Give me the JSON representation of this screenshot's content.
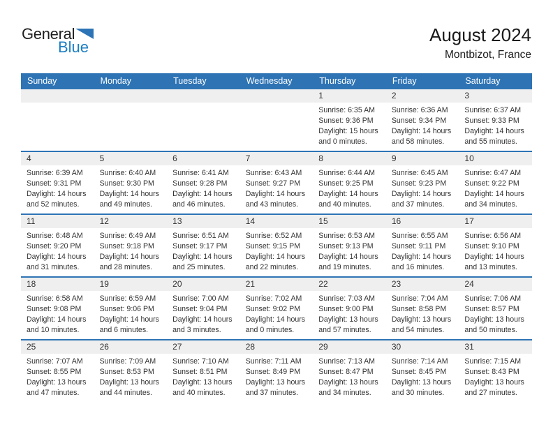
{
  "logo": {
    "part1": "General",
    "part2": "Blue"
  },
  "header": {
    "title": "August 2024",
    "subtitle": "Montbizot, France"
  },
  "colors": {
    "accent": "#2E74B5",
    "strip_gray": "#EFEFEF",
    "logo_blue": "#1B7EC2",
    "triangle_blue": "#2D74B6",
    "text_dark": "#333333"
  },
  "calendar": {
    "day_headers": [
      "Sunday",
      "Monday",
      "Tuesday",
      "Wednesday",
      "Thursday",
      "Friday",
      "Saturday"
    ],
    "labels": {
      "sunrise": "Sunrise:",
      "sunset": "Sunset:",
      "daylight": "Daylight:",
      "hours_word": "hours",
      "and_word": "and",
      "minutes_word": "minutes."
    },
    "weeks": [
      [
        null,
        null,
        null,
        null,
        {
          "day": "1",
          "sunrise": "6:35 AM",
          "sunset": "9:36 PM",
          "hours": "15",
          "minutes": "0"
        },
        {
          "day": "2",
          "sunrise": "6:36 AM",
          "sunset": "9:34 PM",
          "hours": "14",
          "minutes": "58"
        },
        {
          "day": "3",
          "sunrise": "6:37 AM",
          "sunset": "9:33 PM",
          "hours": "14",
          "minutes": "55"
        }
      ],
      [
        {
          "day": "4",
          "sunrise": "6:39 AM",
          "sunset": "9:31 PM",
          "hours": "14",
          "minutes": "52"
        },
        {
          "day": "5",
          "sunrise": "6:40 AM",
          "sunset": "9:30 PM",
          "hours": "14",
          "minutes": "49"
        },
        {
          "day": "6",
          "sunrise": "6:41 AM",
          "sunset": "9:28 PM",
          "hours": "14",
          "minutes": "46"
        },
        {
          "day": "7",
          "sunrise": "6:43 AM",
          "sunset": "9:27 PM",
          "hours": "14",
          "minutes": "43"
        },
        {
          "day": "8",
          "sunrise": "6:44 AM",
          "sunset": "9:25 PM",
          "hours": "14",
          "minutes": "40"
        },
        {
          "day": "9",
          "sunrise": "6:45 AM",
          "sunset": "9:23 PM",
          "hours": "14",
          "minutes": "37"
        },
        {
          "day": "10",
          "sunrise": "6:47 AM",
          "sunset": "9:22 PM",
          "hours": "14",
          "minutes": "34"
        }
      ],
      [
        {
          "day": "11",
          "sunrise": "6:48 AM",
          "sunset": "9:20 PM",
          "hours": "14",
          "minutes": "31"
        },
        {
          "day": "12",
          "sunrise": "6:49 AM",
          "sunset": "9:18 PM",
          "hours": "14",
          "minutes": "28"
        },
        {
          "day": "13",
          "sunrise": "6:51 AM",
          "sunset": "9:17 PM",
          "hours": "14",
          "minutes": "25"
        },
        {
          "day": "14",
          "sunrise": "6:52 AM",
          "sunset": "9:15 PM",
          "hours": "14",
          "minutes": "22"
        },
        {
          "day": "15",
          "sunrise": "6:53 AM",
          "sunset": "9:13 PM",
          "hours": "14",
          "minutes": "19"
        },
        {
          "day": "16",
          "sunrise": "6:55 AM",
          "sunset": "9:11 PM",
          "hours": "14",
          "minutes": "16"
        },
        {
          "day": "17",
          "sunrise": "6:56 AM",
          "sunset": "9:10 PM",
          "hours": "14",
          "minutes": "13"
        }
      ],
      [
        {
          "day": "18",
          "sunrise": "6:58 AM",
          "sunset": "9:08 PM",
          "hours": "14",
          "minutes": "10"
        },
        {
          "day": "19",
          "sunrise": "6:59 AM",
          "sunset": "9:06 PM",
          "hours": "14",
          "minutes": "6"
        },
        {
          "day": "20",
          "sunrise": "7:00 AM",
          "sunset": "9:04 PM",
          "hours": "14",
          "minutes": "3"
        },
        {
          "day": "21",
          "sunrise": "7:02 AM",
          "sunset": "9:02 PM",
          "hours": "14",
          "minutes": "0"
        },
        {
          "day": "22",
          "sunrise": "7:03 AM",
          "sunset": "9:00 PM",
          "hours": "13",
          "minutes": "57"
        },
        {
          "day": "23",
          "sunrise": "7:04 AM",
          "sunset": "8:58 PM",
          "hours": "13",
          "minutes": "54"
        },
        {
          "day": "24",
          "sunrise": "7:06 AM",
          "sunset": "8:57 PM",
          "hours": "13",
          "minutes": "50"
        }
      ],
      [
        {
          "day": "25",
          "sunrise": "7:07 AM",
          "sunset": "8:55 PM",
          "hours": "13",
          "minutes": "47"
        },
        {
          "day": "26",
          "sunrise": "7:09 AM",
          "sunset": "8:53 PM",
          "hours": "13",
          "minutes": "44"
        },
        {
          "day": "27",
          "sunrise": "7:10 AM",
          "sunset": "8:51 PM",
          "hours": "13",
          "minutes": "40"
        },
        {
          "day": "28",
          "sunrise": "7:11 AM",
          "sunset": "8:49 PM",
          "hours": "13",
          "minutes": "37"
        },
        {
          "day": "29",
          "sunrise": "7:13 AM",
          "sunset": "8:47 PM",
          "hours": "13",
          "minutes": "34"
        },
        {
          "day": "30",
          "sunrise": "7:14 AM",
          "sunset": "8:45 PM",
          "hours": "13",
          "minutes": "30"
        },
        {
          "day": "31",
          "sunrise": "7:15 AM",
          "sunset": "8:43 PM",
          "hours": "13",
          "minutes": "27"
        }
      ]
    ]
  }
}
